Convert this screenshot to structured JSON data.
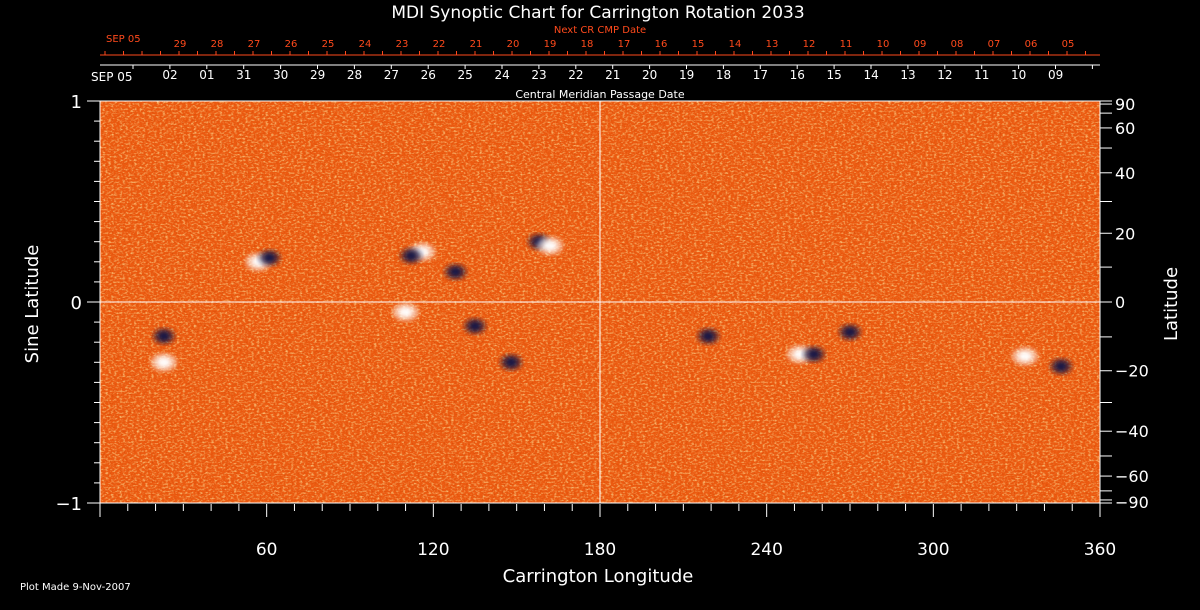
{
  "chart_data": {
    "type": "heatmap",
    "title": "MDI Synoptic Chart for Carrington Rotation 2033",
    "xlabel": "Carrington Longitude",
    "ylabel_left": "Sine Latitude",
    "ylabel_right": "Latitude",
    "xlim": [
      0,
      360
    ],
    "ylim_left": [
      -1,
      1
    ],
    "x_ticks": [
      60,
      120,
      180,
      240,
      300,
      360
    ],
    "y_ticks_left": [
      {
        "value": 1,
        "label": "1"
      },
      {
        "value": 0,
        "label": "0"
      },
      {
        "value": -1,
        "label": "−1"
      }
    ],
    "y_ticks_right": [
      {
        "lat": 90,
        "label": "90"
      },
      {
        "lat": 60,
        "label": "60"
      },
      {
        "lat": 40,
        "label": "40"
      },
      {
        "lat": 20,
        "label": "20"
      },
      {
        "lat": 0,
        "label": "0"
      },
      {
        "lat": -20,
        "label": "−20"
      },
      {
        "lat": -40,
        "label": "−40"
      },
      {
        "lat": -60,
        "label": "−60"
      },
      {
        "lat": -90,
        "label": "−90"
      }
    ],
    "grid_lines": {
      "longitude": 180,
      "sine_latitude": 0
    },
    "top_axis_red": {
      "title": "Next CR CMP Date",
      "start_label": "SEP 05",
      "labels": [
        "29",
        "28",
        "27",
        "26",
        "25",
        "24",
        "23",
        "22",
        "21",
        "20",
        "19",
        "18",
        "17",
        "16",
        "15",
        "14",
        "13",
        "12",
        "11",
        "10",
        "09",
        "08",
        "07",
        "06",
        "05"
      ]
    },
    "top_axis_white": {
      "title": "Central Meridian Passage Date",
      "start_label": "SEP 05",
      "labels": [
        "02",
        "01",
        "31",
        "30",
        "29",
        "28",
        "27",
        "26",
        "25",
        "24",
        "23",
        "22",
        "21",
        "20",
        "19",
        "18",
        "17",
        "16",
        "15",
        "14",
        "13",
        "12",
        "11",
        "10",
        "09"
      ]
    },
    "footer": "Plot Made  9-Nov-2007",
    "colors": {
      "background_field": "#ec5a10",
      "positive_polarity": "#ffffff",
      "negative_polarity": "#191446",
      "axis": "#ffffff",
      "next_cr_axis": "#ff4a1c"
    },
    "active_regions": [
      {
        "lon": 57,
        "sinlat": 0.2,
        "polarity": "positive"
      },
      {
        "lon": 61,
        "sinlat": 0.22,
        "polarity": "negative"
      },
      {
        "lon": 116,
        "sinlat": 0.25,
        "polarity": "positive"
      },
      {
        "lon": 112,
        "sinlat": 0.23,
        "polarity": "negative"
      },
      {
        "lon": 128,
        "sinlat": 0.15,
        "polarity": "negative"
      },
      {
        "lon": 158,
        "sinlat": 0.3,
        "polarity": "negative"
      },
      {
        "lon": 162,
        "sinlat": 0.28,
        "polarity": "positive"
      },
      {
        "lon": 23,
        "sinlat": -0.17,
        "polarity": "negative"
      },
      {
        "lon": 23,
        "sinlat": -0.3,
        "polarity": "positive"
      },
      {
        "lon": 110,
        "sinlat": -0.05,
        "polarity": "positive"
      },
      {
        "lon": 135,
        "sinlat": -0.12,
        "polarity": "negative"
      },
      {
        "lon": 148,
        "sinlat": -0.3,
        "polarity": "negative"
      },
      {
        "lon": 219,
        "sinlat": -0.17,
        "polarity": "negative"
      },
      {
        "lon": 252,
        "sinlat": -0.26,
        "polarity": "positive"
      },
      {
        "lon": 257,
        "sinlat": -0.26,
        "polarity": "negative"
      },
      {
        "lon": 270,
        "sinlat": -0.15,
        "polarity": "negative"
      },
      {
        "lon": 333,
        "sinlat": -0.27,
        "polarity": "positive"
      },
      {
        "lon": 346,
        "sinlat": -0.32,
        "polarity": "negative"
      }
    ]
  }
}
